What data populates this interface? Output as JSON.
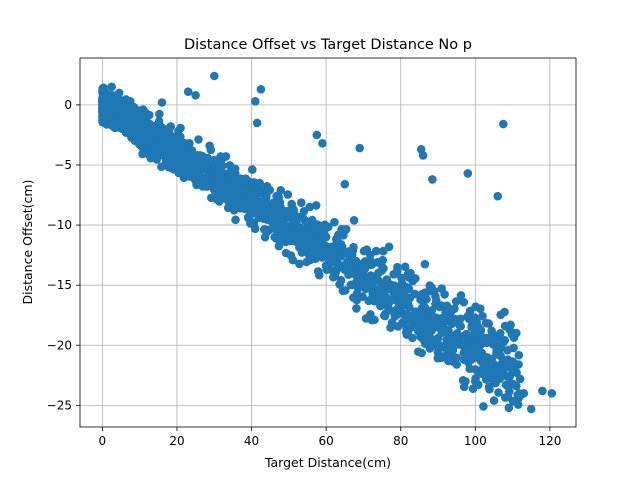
{
  "chart_data": {
    "type": "scatter",
    "title": "Distance Offset vs Target Distance No p",
    "xlabel": "Target Distance(cm)",
    "ylabel": "Distance Offset(cm)",
    "xlim": [
      -6,
      127
    ],
    "ylim": [
      -26.8,
      3.9
    ],
    "xticks": [
      0,
      20,
      40,
      60,
      80,
      100,
      120
    ],
    "yticks": [
      0,
      -5,
      -10,
      -15,
      -20,
      -25
    ],
    "grid": true,
    "marker_color": "#1f77b4",
    "trend": {
      "slope": -0.2,
      "intercept": 0
    },
    "x": [
      0.5,
      1,
      1.5,
      2,
      2.5,
      3,
      3.5,
      4,
      4.5,
      5,
      5.5,
      6,
      6.5,
      7,
      7.5,
      8,
      8.5,
      9,
      9.5,
      10,
      11,
      12,
      13,
      14,
      15,
      16,
      17,
      18,
      19,
      20,
      21,
      22,
      23,
      24,
      25,
      26,
      27,
      28,
      29,
      30,
      31,
      32,
      33,
      34,
      35,
      36,
      37,
      38,
      39,
      40,
      41,
      42,
      43,
      44,
      45,
      46,
      47,
      48,
      49,
      50,
      51,
      52,
      53,
      54,
      55,
      56,
      57,
      58,
      59,
      60,
      61,
      62,
      63,
      64,
      65,
      66,
      67,
      68,
      69,
      70,
      71,
      72,
      73,
      74,
      75,
      76,
      77,
      78,
      79,
      80,
      81,
      82,
      83,
      84,
      85,
      86,
      87,
      88,
      89,
      90,
      91,
      92,
      93,
      94,
      95,
      96,
      97,
      98,
      99,
      100,
      101,
      102,
      103,
      104,
      105,
      106,
      107,
      108,
      109,
      110,
      111,
      112,
      113,
      115,
      118,
      120.5,
      2,
      3,
      5,
      8,
      10,
      13,
      16,
      18,
      20,
      22,
      24,
      26,
      28,
      30,
      33,
      35,
      37,
      40,
      42,
      44,
      46,
      48,
      50,
      52,
      55,
      58,
      60,
      62,
      64,
      66,
      68,
      70,
      72,
      74,
      76,
      78,
      80,
      82,
      84,
      86,
      88,
      90,
      92,
      95,
      98,
      100,
      103,
      105,
      0.2,
      0.6,
      1.2,
      16,
      23,
      25,
      30,
      41,
      42.5,
      41.5,
      57.5,
      59,
      69,
      85.5,
      86,
      88.5,
      98,
      106,
      107.5,
      44,
      65
    ],
    "y": [
      0.3,
      0,
      -0.2,
      0.8,
      1.5,
      0.5,
      -0.3,
      0.6,
      1,
      0.2,
      -0.5,
      0,
      -0.6,
      -0.4,
      0.3,
      -1,
      -1.4,
      -0.8,
      -2,
      -1.5,
      -2.4,
      -1.8,
      -3,
      -2.2,
      -3.5,
      -2.8,
      -3.4,
      -4,
      -3.2,
      -4.8,
      -3.6,
      -4.4,
      -5.2,
      -4.6,
      -6,
      -5.4,
      -4.8,
      -6.6,
      -5.6,
      -6.2,
      -7,
      -6,
      -6.8,
      -7.6,
      -6.4,
      -7.2,
      -8,
      -7,
      -8.4,
      -7.8,
      -8.6,
      -7.4,
      -9,
      -8.2,
      -9.6,
      -8.8,
      -9.2,
      -10,
      -9.4,
      -10.4,
      -9.8,
      -10.8,
      -10.2,
      -11.2,
      -10.6,
      -11.6,
      -11,
      -12.4,
      -11.4,
      -12,
      -12.8,
      -11.8,
      -13.2,
      -12.6,
      -13.6,
      -12.2,
      -14,
      -13,
      -14.4,
      -13.8,
      -15.2,
      -14.2,
      -15.6,
      -14.6,
      -16,
      -15,
      -16.4,
      -15.4,
      -17,
      -16.2,
      -17.4,
      -16.6,
      -18,
      -17.2,
      -18.2,
      -17.6,
      -19,
      -18.4,
      -15.5,
      -19.4,
      -18.8,
      -20,
      -19.2,
      -20.4,
      -19.6,
      -17.8,
      -21.2,
      -20.6,
      -18.5,
      -22,
      -20.8,
      -22.4,
      -19.8,
      -21.6,
      -23,
      -22,
      -22.6,
      -18.4,
      -25.2,
      -22.2,
      -23.4,
      -22.8,
      -24,
      -25.3,
      -23.8,
      -24,
      -0.5,
      0.2,
      -1.2,
      -0.4,
      -2.6,
      -1.8,
      -3.8,
      -2,
      -4.2,
      -5.5,
      -3.8,
      -5.2,
      -6.8,
      -4.6,
      -7.4,
      -6.6,
      -8.6,
      -8,
      -9.4,
      -8.2,
      -10,
      -9.6,
      -10.6,
      -11.4,
      -10.2,
      -12.6,
      -11,
      -13.8,
      -11.6,
      -13,
      -14.8,
      -13.4,
      -16.2,
      -14,
      -16,
      -17.2,
      -16.4,
      -18.6,
      -17.8,
      -19.2,
      -15.2,
      -20.2,
      -17,
      -21.6,
      -20.4,
      -23,
      -19.4,
      -24.6,
      0.4,
      0.1,
      -0.3,
      0.2,
      1.1,
      0.8,
      2.4,
      0.3,
      1.3,
      -1.5,
      -2.5,
      -3.2,
      -3.6,
      -3.7,
      -4.2,
      -6.2,
      -5.7,
      -7.6,
      -1.6,
      -10.6,
      -6.6
    ]
  }
}
